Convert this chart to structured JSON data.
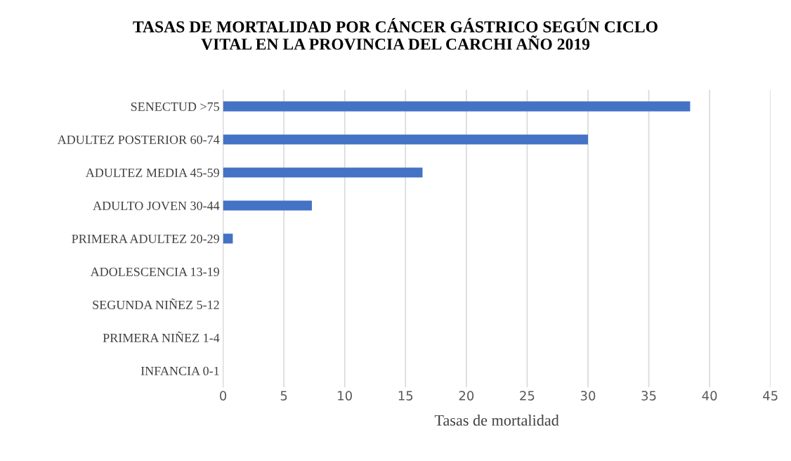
{
  "chart_data": {
    "type": "bar",
    "orientation": "horizontal",
    "title": "TASAS DE MORTALIDAD POR CÁNCER GÁSTRICO SEGÚN CICLO\nVITAL EN LA PROVINCIA DEL CARCHI AÑO 2019",
    "xlabel": "Tasas de mortalidad",
    "categories": [
      "SENECTUD >75",
      "ADULTEZ POSTERIOR 60-74",
      "ADULTEZ MEDIA 45-59",
      "ADULTO JOVEN 30-44",
      "PRIMERA ADULTEZ 20-29",
      "ADOLESCENCIA 13-19",
      "SEGUNDA NIÑEZ 5-12",
      "PRIMERA NIÑEZ 1-4",
      "INFANCIA 0-1"
    ],
    "values": [
      38.4,
      30,
      16.4,
      7.3,
      0.8,
      0,
      0,
      0,
      0
    ],
    "color": "#4472c4",
    "xlim": [
      0,
      45
    ],
    "xticks": [
      0,
      5,
      10,
      15,
      20,
      25,
      30,
      35,
      40,
      45
    ],
    "grid": "x",
    "legend": false
  }
}
